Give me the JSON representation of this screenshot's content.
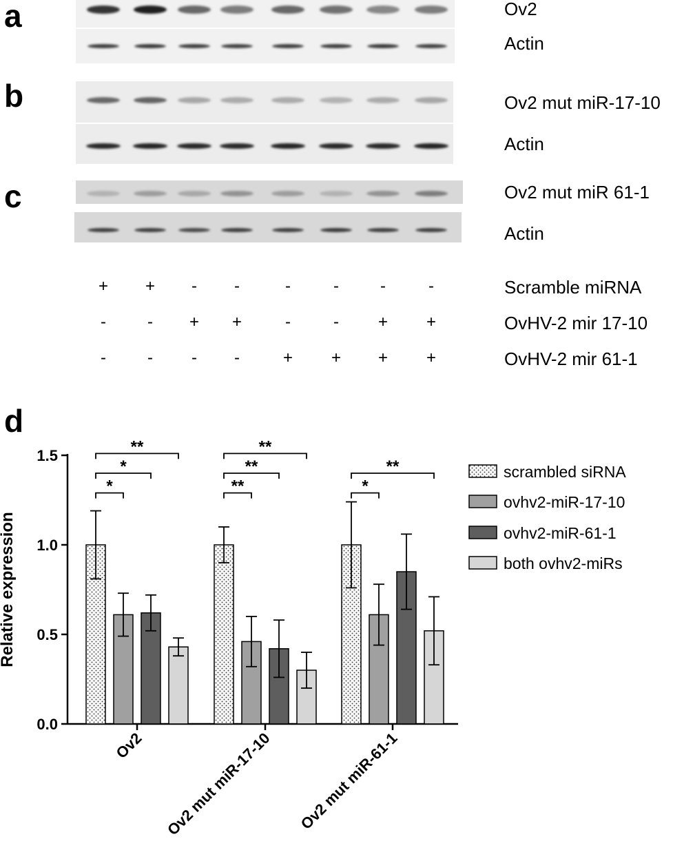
{
  "panels": {
    "a": "a",
    "b": "b",
    "c": "c",
    "d": "d"
  },
  "blots": {
    "a": {
      "target_label": "Ov2",
      "loading_label": "Actin",
      "target_intensity": [
        0.85,
        0.95,
        0.6,
        0.5,
        0.6,
        0.55,
        0.45,
        0.5
      ],
      "actin_intensity": [
        0.8,
        0.82,
        0.8,
        0.78,
        0.8,
        0.8,
        0.82,
        0.78
      ]
    },
    "b": {
      "target_label": "Ov2 mut miR-17-10",
      "loading_label": "Actin",
      "target_intensity": [
        0.6,
        0.62,
        0.3,
        0.28,
        0.28,
        0.25,
        0.28,
        0.3
      ],
      "actin_intensity": [
        0.9,
        0.92,
        0.9,
        0.9,
        0.92,
        0.9,
        0.9,
        0.92
      ]
    },
    "c": {
      "target_label": "Ov2 mut miR 61-1",
      "loading_label": "Actin",
      "target_intensity": [
        0.25,
        0.35,
        0.3,
        0.4,
        0.35,
        0.25,
        0.4,
        0.5
      ],
      "actin_intensity": [
        0.8,
        0.8,
        0.75,
        0.8,
        0.8,
        0.82,
        0.8,
        0.8
      ]
    }
  },
  "conditions": [
    {
      "label": "Scramble miRNA",
      "signs": [
        "+",
        "+",
        "-",
        "-",
        "-",
        "-",
        "-",
        "-"
      ]
    },
    {
      "label": "OvHV-2 mir 17-10",
      "signs": [
        "-",
        "-",
        "+",
        "+",
        "-",
        "-",
        "+",
        "+"
      ]
    },
    {
      "label": "OvHV-2 mir 61-1",
      "signs": [
        "-",
        "-",
        "-",
        "-",
        "+",
        "+",
        "+",
        "+"
      ]
    }
  ],
  "chart_data": {
    "type": "bar",
    "ylabel": "Relative expression",
    "ylim": [
      0,
      1.5
    ],
    "yticks": [
      "0.0",
      "0.5",
      "1.0",
      "1.5"
    ],
    "categories": [
      "Ov2",
      "Ov2 mut miR-17-10",
      "Ov2 mut miR-61-1"
    ],
    "series": [
      {
        "name": "scrambled siRNA",
        "values": [
          1.0,
          1.0,
          1.0
        ],
        "errors": [
          0.19,
          0.1,
          0.24
        ],
        "fill": "#f4f4f4",
        "pattern": "dots"
      },
      {
        "name": "ovhv2-miR-17-10",
        "values": [
          0.61,
          0.46,
          0.61
        ],
        "errors": [
          0.12,
          0.14,
          0.17
        ],
        "fill": "#a0a0a0"
      },
      {
        "name": "ovhv2-miR-61-1",
        "values": [
          0.62,
          0.42,
          0.85
        ],
        "errors": [
          0.1,
          0.16,
          0.21
        ],
        "fill": "#5e5e5e"
      },
      {
        "name": "both ovhv2-miRs",
        "values": [
          0.43,
          0.3,
          0.52
        ],
        "errors": [
          0.05,
          0.1,
          0.19
        ],
        "fill": "#d6d6d6"
      }
    ],
    "significance": [
      {
        "group": 0,
        "from": 0,
        "to": 1,
        "label": "*"
      },
      {
        "group": 0,
        "from": 0,
        "to": 2,
        "label": "*"
      },
      {
        "group": 0,
        "from": 0,
        "to": 3,
        "label": "**"
      },
      {
        "group": 1,
        "from": 0,
        "to": 1,
        "label": "**"
      },
      {
        "group": 1,
        "from": 0,
        "to": 2,
        "label": "**"
      },
      {
        "group": 1,
        "from": 0,
        "to": 3,
        "label": "**"
      },
      {
        "group": 2,
        "from": 0,
        "to": 1,
        "label": "*"
      },
      {
        "group": 2,
        "from": 0,
        "to": 3,
        "label": "**"
      }
    ],
    "legend_position": "top-right"
  }
}
